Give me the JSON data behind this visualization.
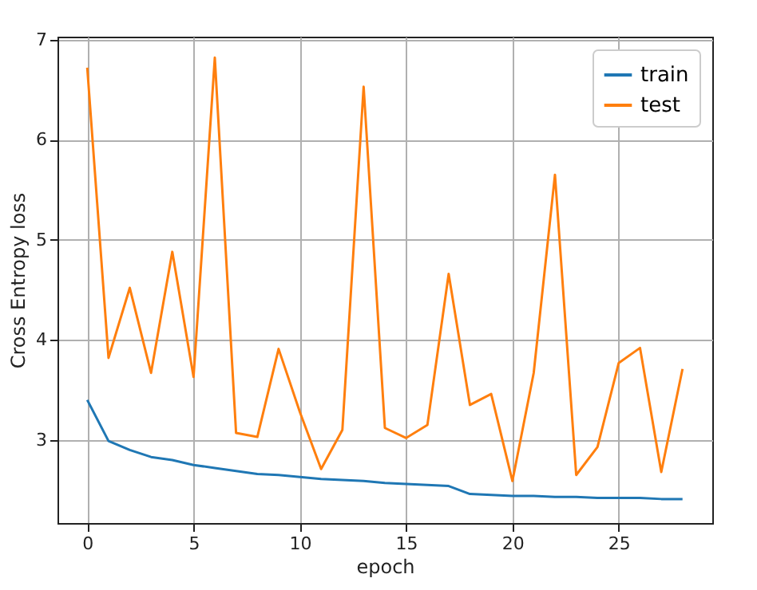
{
  "chart_data": {
    "type": "line",
    "xlabel": "epoch",
    "ylabel": "Cross Entropy loss",
    "x": [
      0,
      1,
      2,
      3,
      4,
      5,
      6,
      7,
      8,
      9,
      10,
      11,
      12,
      13,
      14,
      15,
      16,
      17,
      18,
      19,
      20,
      21,
      22,
      23,
      24,
      25,
      26,
      27,
      28
    ],
    "series": [
      {
        "name": "train",
        "color": "#1f77b4",
        "values": [
          3.4,
          2.99,
          2.9,
          2.83,
          2.8,
          2.75,
          2.72,
          2.69,
          2.66,
          2.65,
          2.63,
          2.61,
          2.6,
          2.59,
          2.57,
          2.56,
          2.55,
          2.54,
          2.46,
          2.45,
          2.44,
          2.44,
          2.43,
          2.43,
          2.42,
          2.42,
          2.42,
          2.41,
          2.41
        ]
      },
      {
        "name": "test",
        "color": "#ff7f0e",
        "values": [
          6.72,
          3.82,
          4.52,
          3.67,
          4.88,
          3.63,
          6.82,
          3.07,
          3.03,
          3.91,
          3.28,
          2.71,
          3.1,
          6.53,
          3.12,
          3.02,
          3.15,
          4.66,
          3.35,
          3.46,
          2.59,
          3.67,
          5.65,
          2.65,
          2.93,
          3.77,
          3.92,
          2.68,
          3.71
        ]
      }
    ],
    "xlim": [
      -1.4,
      29.4
    ],
    "xticks": [
      0,
      5,
      10,
      15,
      20,
      25
    ],
    "ylim": [
      2.17,
      7.03
    ],
    "yticks": [
      3,
      4,
      5,
      6,
      7
    ],
    "grid": true,
    "legend": "top right",
    "marker": "none",
    "line_style": "solid"
  }
}
